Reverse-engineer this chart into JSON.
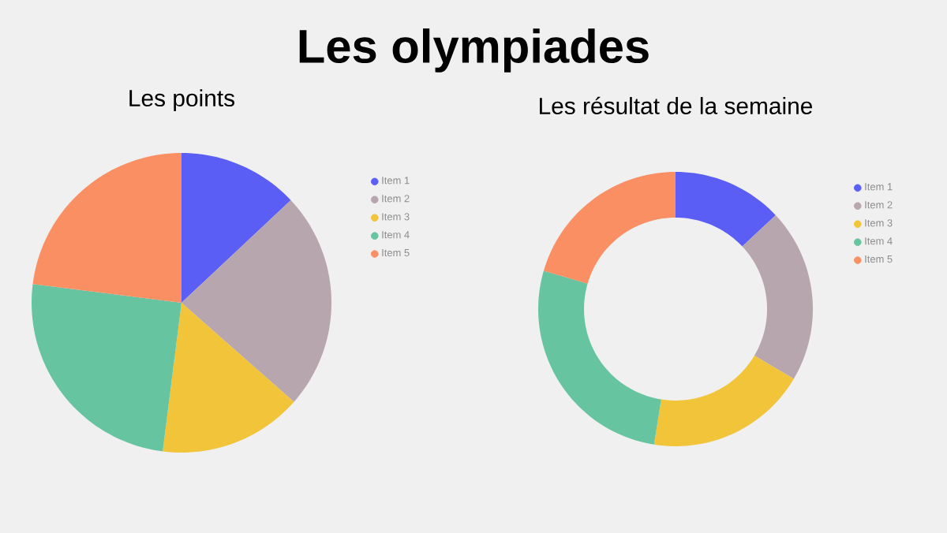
{
  "chart_data": [
    {
      "type": "pie",
      "title": "Les points",
      "annotations": [
        "Les olympiades"
      ],
      "categories": [
        "Item 1",
        "Item 2",
        "Item 3",
        "Item 4",
        "Item 5"
      ],
      "values": [
        13,
        23.5,
        15.5,
        25,
        23
      ],
      "colors": [
        "#5b5ef5",
        "#b8a6ae",
        "#f2c43a",
        "#66c4a0",
        "#f98f63"
      ],
      "legend": "right"
    },
    {
      "type": "donut",
      "title": "Les résultat de la semaine",
      "categories": [
        "Item 1",
        "Item 2",
        "Item 3",
        "Item 4",
        "Item 5"
      ],
      "values": [
        13,
        20.5,
        19,
        27,
        20.5
      ],
      "colors": [
        "#5b5ef5",
        "#b8a6ae",
        "#f2c43a",
        "#66c4a0",
        "#f98f63"
      ],
      "legend": "right"
    }
  ]
}
